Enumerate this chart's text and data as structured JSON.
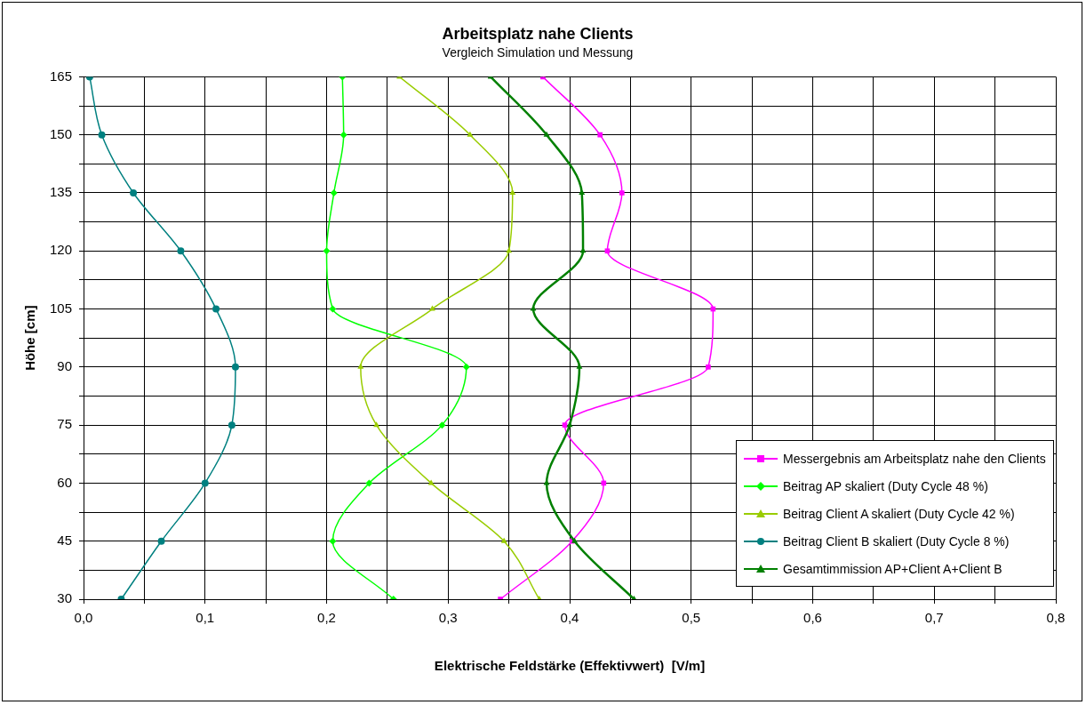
{
  "chart_data": {
    "type": "line",
    "title": "Arbeitsplatz nahe Clients",
    "subtitle": "Vergleich Simulation und Messung",
    "xlabel": "Elektrische Feldstärke (Effektivwert)  [V/m]",
    "ylabel": "Höhe [cm]",
    "xlim": [
      0,
      0.8
    ],
    "ylim": [
      30,
      165
    ],
    "xticks": [
      {
        "value": 0,
        "label": "0,0"
      },
      {
        "value": 0.05,
        "label": null
      },
      {
        "value": 0.1,
        "label": "0,1"
      },
      {
        "value": 0.15,
        "label": null
      },
      {
        "value": 0.2,
        "label": "0,2"
      },
      {
        "value": 0.25,
        "label": null
      },
      {
        "value": 0.3,
        "label": "0,3"
      },
      {
        "value": 0.35,
        "label": null
      },
      {
        "value": 0.4,
        "label": "0,4"
      },
      {
        "value": 0.45,
        "label": null
      },
      {
        "value": 0.5,
        "label": "0,5"
      },
      {
        "value": 0.55,
        "label": null
      },
      {
        "value": 0.6,
        "label": "0,6"
      },
      {
        "value": 0.65,
        "label": null
      },
      {
        "value": 0.7,
        "label": "0,7"
      },
      {
        "value": 0.75,
        "label": null
      },
      {
        "value": 0.8,
        "label": "0,8"
      }
    ],
    "yticks": [
      30,
      {
        "value": 37.5,
        "label": null
      },
      45,
      {
        "value": 52.5,
        "label": null
      },
      60,
      {
        "value": 67.5,
        "label": null
      },
      75,
      {
        "value": 82.5,
        "label": null
      },
      90,
      {
        "value": 97.5,
        "label": null
      },
      105,
      {
        "value": 112.5,
        "label": null
      },
      120,
      {
        "value": 127.5,
        "label": null
      },
      135,
      {
        "value": 142.5,
        "label": null
      },
      150,
      {
        "value": 157.5,
        "label": null
      },
      165
    ],
    "grid": true,
    "legend": "bottom right",
    "series": [
      {
        "name": "Messergebnis am Arbeitsplatz nahe den Clients",
        "color": "#ff00ff",
        "marker": "square",
        "x": [
          0.378,
          0.425,
          0.443,
          0.431,
          0.518,
          0.514,
          0.396,
          0.428,
          0.402,
          0.343
        ],
        "values": [
          165,
          150,
          135,
          120,
          105,
          90,
          75,
          60,
          45,
          30
        ]
      },
      {
        "name": "Beitrag AP skaliert (Duty Cycle 48 %)",
        "color": "#00ff00",
        "marker": "diamond",
        "x": [
          0.213,
          0.214,
          0.206,
          0.2,
          0.205,
          0.315,
          0.295,
          0.235,
          0.205,
          0.255
        ],
        "values": [
          165,
          150,
          135,
          120,
          105,
          90,
          75,
          60,
          45,
          30
        ]
      },
      {
        "name": "Beitrag Client A skaliert (Duty Cycle 42 %)",
        "color": "#99cc00",
        "marker": "triangle",
        "x": [
          0.26,
          0.318,
          0.353,
          0.35,
          0.287,
          0.228,
          0.241,
          0.286,
          0.346,
          0.375
        ],
        "values": [
          165,
          150,
          135,
          120,
          105,
          90,
          75,
          60,
          45,
          30
        ]
      },
      {
        "name": "Beitrag Client B skaliert (Duty Cycle 8 %)",
        "color": "#008080",
        "marker": "circle",
        "x": [
          0.005,
          0.015,
          0.041,
          0.08,
          0.109,
          0.125,
          0.122,
          0.1,
          0.064,
          0.031
        ],
        "values": [
          165,
          150,
          135,
          120,
          105,
          90,
          75,
          60,
          45,
          30
        ]
      },
      {
        "name": "Gesamtimmission AP+Client A+Client B",
        "color": "#008000",
        "marker": "triangle",
        "x": [
          0.335,
          0.381,
          0.41,
          0.411,
          0.37,
          0.408,
          0.4,
          0.381,
          0.404,
          0.453
        ],
        "values": [
          165,
          150,
          135,
          120,
          105,
          90,
          75,
          60,
          45,
          30
        ]
      }
    ]
  }
}
